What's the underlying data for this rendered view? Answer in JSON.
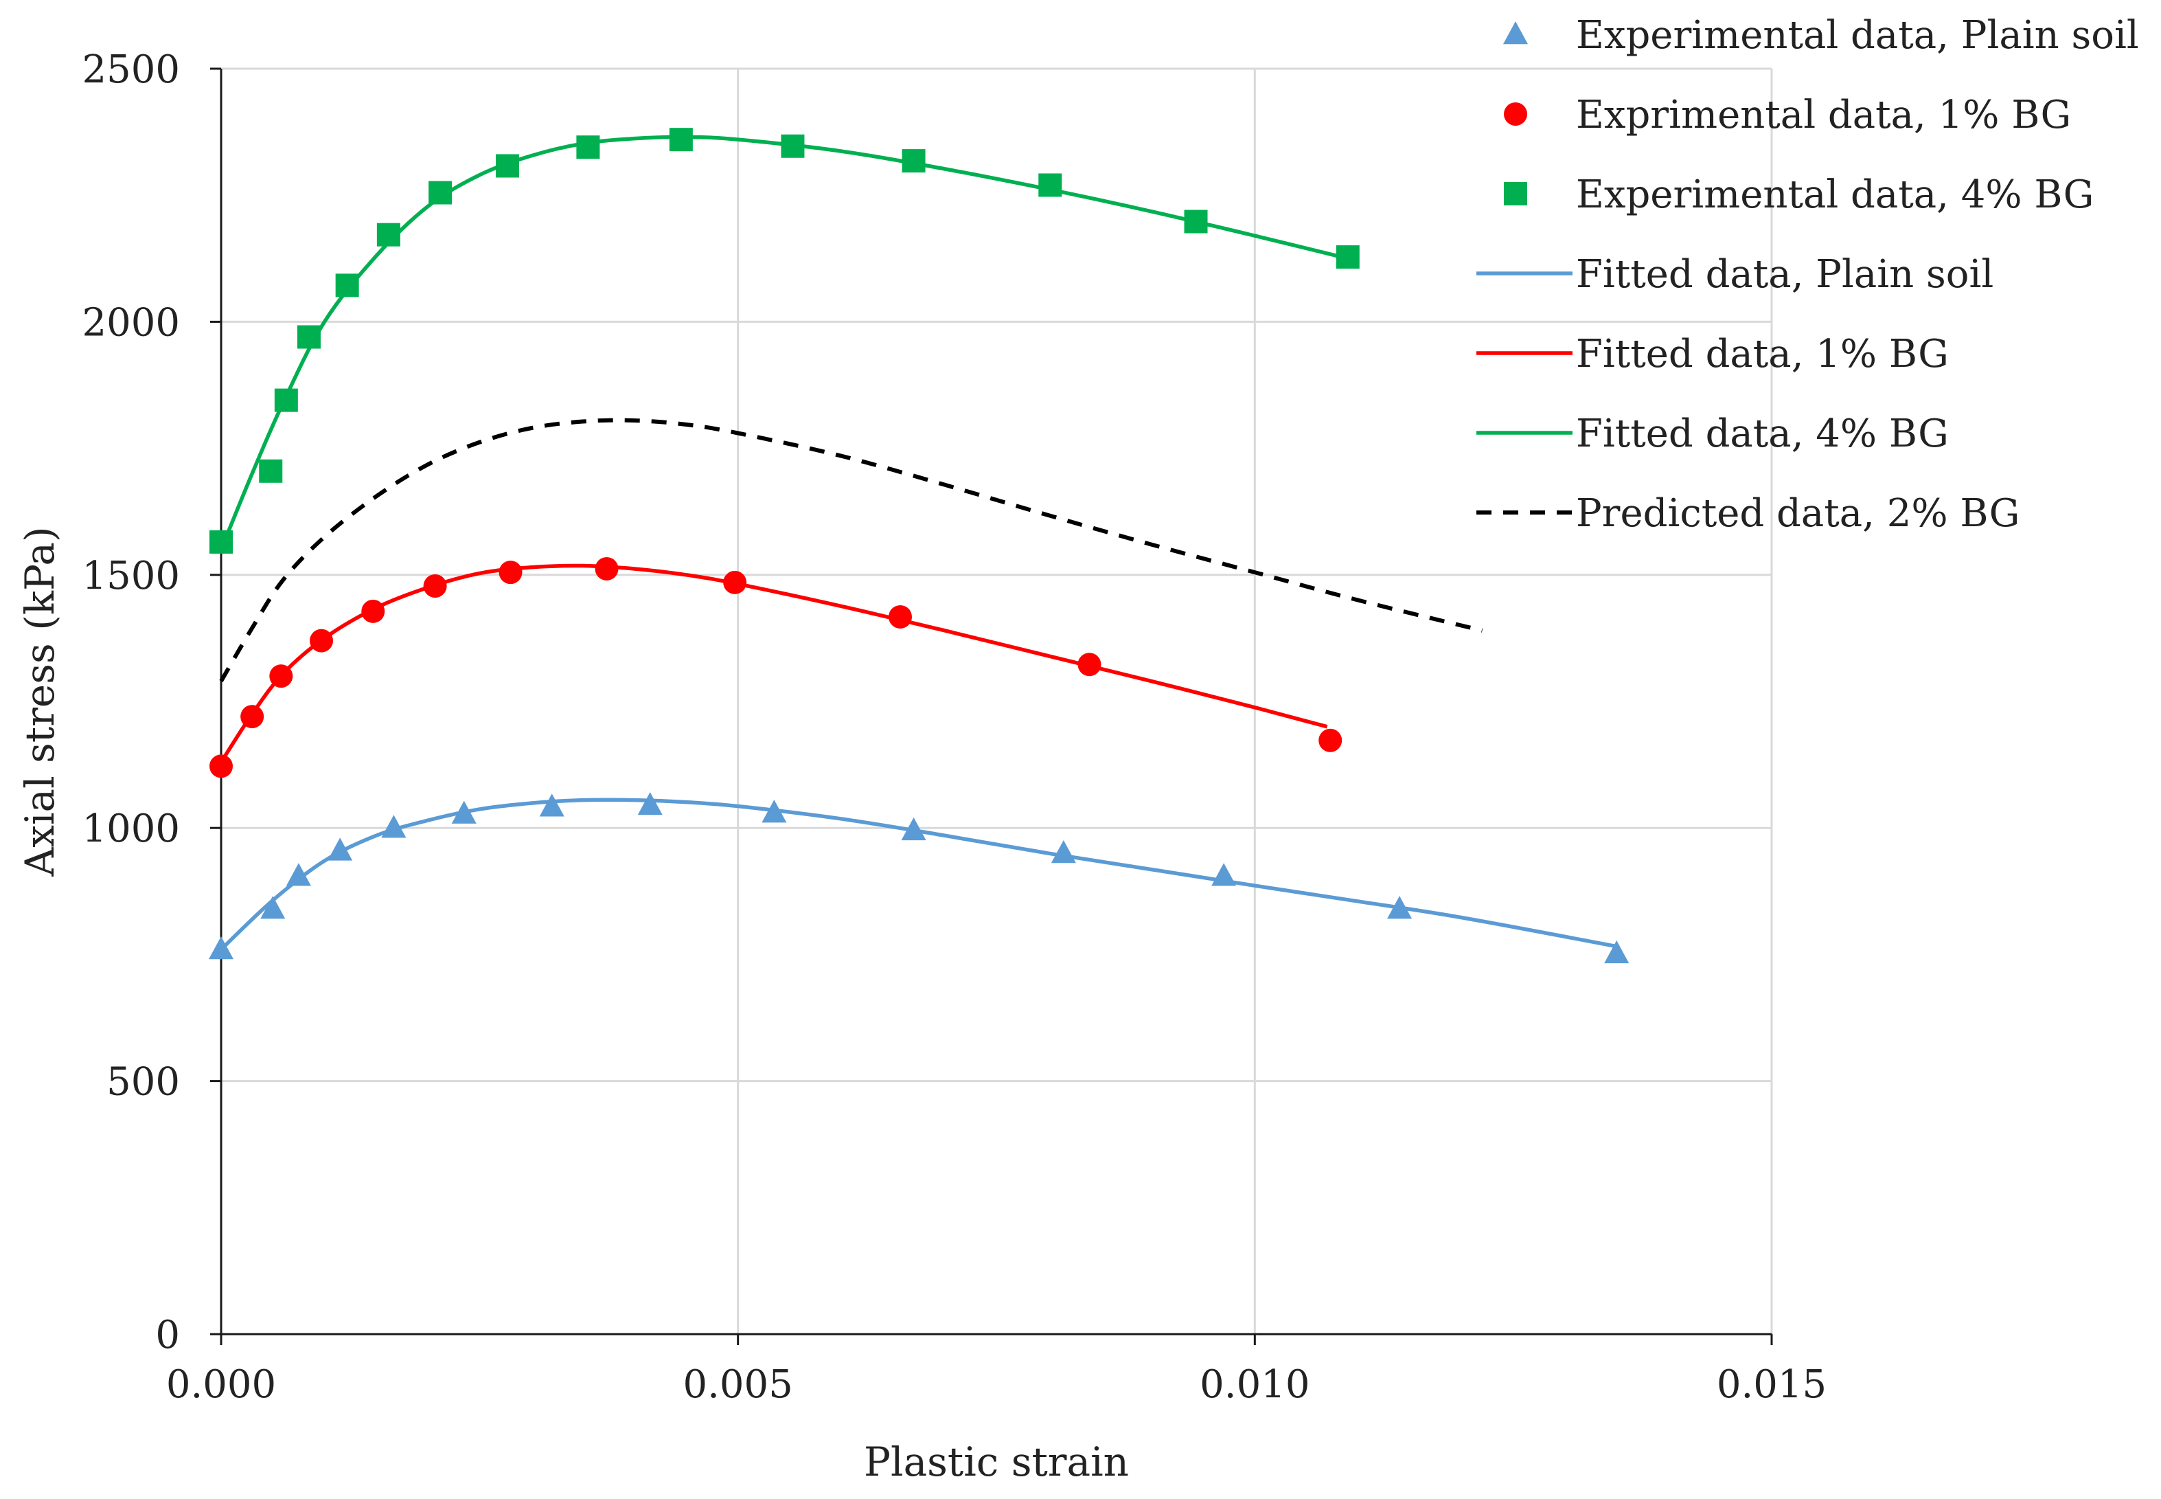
{
  "chart_data": {
    "type": "line",
    "title": "",
    "xlabel": "Plastic strain",
    "ylabel": "Axial stress (kPa)",
    "xlim": [
      0,
      0.015
    ],
    "ylim": [
      0,
      2500
    ],
    "xticks": [
      0,
      0.005,
      0.01,
      0.015
    ],
    "xtick_labels": [
      "0.000",
      "0.005",
      "0.010",
      "0.015"
    ],
    "yticks": [
      0,
      500,
      1000,
      1500,
      2000,
      2500
    ],
    "ytick_labels": [
      "0",
      "500",
      "1000",
      "1500",
      "2000",
      "2500"
    ],
    "grid": true,
    "legend_position": "top-right",
    "series": [
      {
        "name": "Experimental data, Plain soil",
        "kind": "markers",
        "marker": "triangle",
        "color": "#5b9bd5",
        "x": [
          0.0,
          0.0005,
          0.00075,
          0.00115,
          0.00167,
          0.00235,
          0.0032,
          0.00415,
          0.00535,
          0.0067,
          0.00815,
          0.0097,
          0.0114,
          0.0135
        ],
        "y": [
          760,
          840,
          905,
          955,
          1000,
          1028,
          1042,
          1045,
          1030,
          995,
          950,
          905,
          840,
          752
        ]
      },
      {
        "name": "Exprimental data, 1% BG",
        "kind": "markers",
        "marker": "circle",
        "color": "#ff0000",
        "x": [
          0.0,
          0.0003,
          0.00058,
          0.00097,
          0.00147,
          0.00207,
          0.0028,
          0.00373,
          0.00497,
          0.00657,
          0.0084,
          0.01073
        ],
        "y": [
          1122,
          1220,
          1300,
          1370,
          1428,
          1478,
          1505,
          1512,
          1485,
          1417,
          1323,
          1173
        ]
      },
      {
        "name": "Experimental data, 4% BG",
        "kind": "markers",
        "marker": "square",
        "color": "#00b050",
        "x": [
          0.0,
          0.00048,
          0.00063,
          0.00085,
          0.00122,
          0.00162,
          0.00212,
          0.00277,
          0.00355,
          0.00445,
          0.00553,
          0.0067,
          0.00802,
          0.00943,
          0.0109
        ],
        "y": [
          1565,
          1705,
          1845,
          1970,
          2072,
          2172,
          2255,
          2308,
          2345,
          2360,
          2347,
          2318,
          2270,
          2198,
          2128
        ]
      },
      {
        "name": "Fitted data, Plain soil",
        "kind": "line",
        "dash": "solid",
        "color": "#5b9bd5",
        "x": [
          0.0,
          0.0005,
          0.001,
          0.0015,
          0.002,
          0.0025,
          0.003,
          0.0035,
          0.004,
          0.0045,
          0.005,
          0.006,
          0.007,
          0.008,
          0.009,
          0.01,
          0.011,
          0.012,
          0.0135
        ],
        "y": [
          760,
          857,
          935,
          985,
          1015,
          1037,
          1049,
          1055,
          1055,
          1051,
          1043,
          1018,
          985,
          950,
          918,
          886,
          855,
          823,
          766
        ]
      },
      {
        "name": "Fitted data, 1% BG",
        "kind": "line",
        "dash": "solid",
        "color": "#ff0000",
        "x": [
          0.0,
          0.0003,
          0.0006,
          0.001,
          0.0015,
          0.002,
          0.0025,
          0.003,
          0.0035,
          0.004,
          0.0045,
          0.005,
          0.006,
          0.007,
          0.008,
          0.009,
          0.01,
          0.0107
        ],
        "y": [
          1130,
          1225,
          1305,
          1375,
          1435,
          1475,
          1503,
          1515,
          1518,
          1512,
          1500,
          1482,
          1438,
          1390,
          1340,
          1290,
          1238,
          1200
        ]
      },
      {
        "name": "Fitted data, 4% BG",
        "kind": "line",
        "dash": "solid",
        "color": "#00b050",
        "x": [
          0.0,
          0.0003,
          0.0006,
          0.001,
          0.0015,
          0.002,
          0.0025,
          0.003,
          0.0035,
          0.004,
          0.0045,
          0.005,
          0.006,
          0.007,
          0.008,
          0.009,
          0.01,
          0.0109
        ],
        "y": [
          1550,
          1700,
          1840,
          2000,
          2130,
          2228,
          2290,
          2328,
          2352,
          2362,
          2365,
          2360,
          2337,
          2302,
          2262,
          2218,
          2170,
          2125
        ]
      },
      {
        "name": "Predicted data, 2% BG",
        "kind": "line",
        "dash": "dashed",
        "color": "#000000",
        "x": [
          0.0,
          0.0003,
          0.0006,
          0.001,
          0.0015,
          0.002,
          0.0025,
          0.003,
          0.0035,
          0.004,
          0.0045,
          0.005,
          0.006,
          0.007,
          0.008,
          0.009,
          0.01,
          0.011,
          0.0122
        ],
        "y": [
          1290,
          1395,
          1490,
          1575,
          1655,
          1718,
          1762,
          1790,
          1803,
          1805,
          1797,
          1780,
          1735,
          1678,
          1618,
          1560,
          1505,
          1450,
          1390
        ]
      }
    ]
  }
}
